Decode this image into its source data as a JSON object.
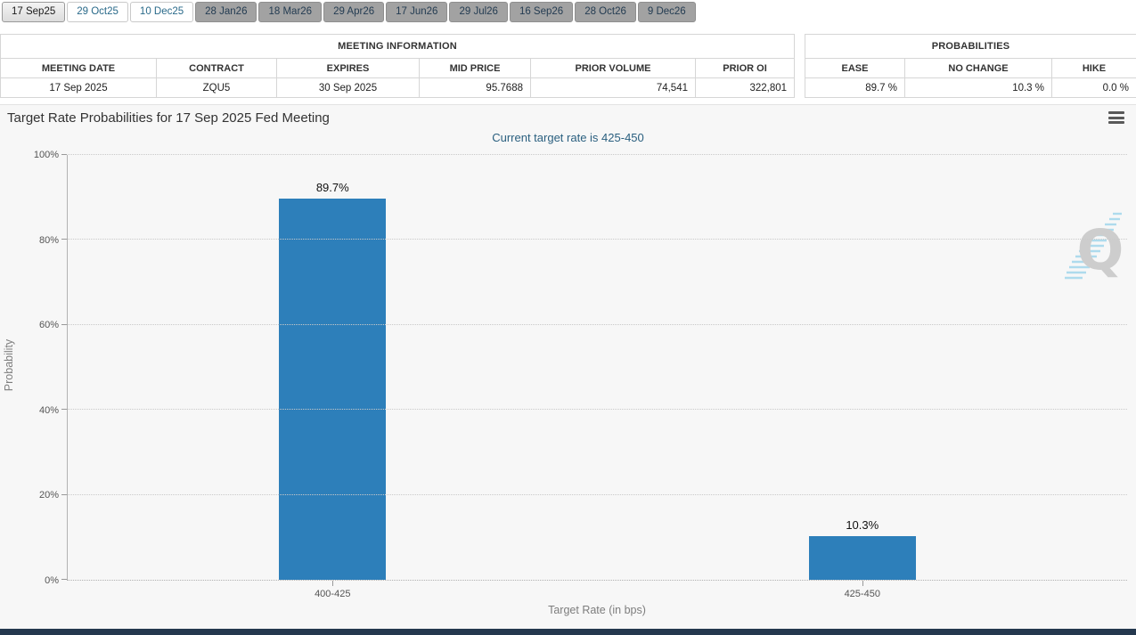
{
  "tabs": {
    "items": [
      {
        "label": "17 Sep25",
        "state": "selected"
      },
      {
        "label": "29 Oct25",
        "state": "normal"
      },
      {
        "label": "10 Dec25",
        "state": "normal"
      },
      {
        "label": "28 Jan26",
        "state": "dimmed"
      },
      {
        "label": "18 Mar26",
        "state": "dimmed"
      },
      {
        "label": "29 Apr26",
        "state": "dimmed"
      },
      {
        "label": "17 Jun26",
        "state": "dimmed"
      },
      {
        "label": "29 Jul26",
        "state": "dimmed"
      },
      {
        "label": "16 Sep26",
        "state": "dimmed"
      },
      {
        "label": "28 Oct26",
        "state": "dimmed"
      },
      {
        "label": "9 Dec26",
        "state": "dimmed"
      }
    ]
  },
  "meeting_information": {
    "title": "MEETING INFORMATION",
    "columns": [
      "MEETING DATE",
      "CONTRACT",
      "EXPIRES",
      "MID PRICE",
      "PRIOR VOLUME",
      "PRIOR OI"
    ],
    "row": {
      "meeting_date": "17 Sep 2025",
      "contract": "ZQU5",
      "expires": "30 Sep 2025",
      "mid_price": "95.7688",
      "prior_volume": "74,541",
      "prior_oi": "322,801"
    }
  },
  "probabilities": {
    "title": "PROBABILITIES",
    "columns": [
      "EASE",
      "NO CHANGE",
      "HIKE"
    ],
    "row": {
      "ease": "89.7 %",
      "no_change": "10.3 %",
      "hike": "0.0 %"
    }
  },
  "chart": {
    "title": "Target Rate Probabilities for 17 Sep 2025 Fed Meeting",
    "subtitle": "Current target rate is 425-450",
    "menu_icon": "hamburger-menu",
    "watermark_letter": "Q"
  },
  "chart_data": {
    "type": "bar",
    "title": "Target Rate Probabilities for 17 Sep 2025 Fed Meeting",
    "subtitle": "Current target rate is 425-450",
    "categories": [
      "400-425",
      "425-450"
    ],
    "values": [
      89.7,
      10.3
    ],
    "value_labels": [
      "89.7%",
      "10.3%"
    ],
    "xlabel": "Target Rate (in bps)",
    "ylabel": "Probability",
    "ylim": [
      0,
      100
    ],
    "yticks": [
      0,
      20,
      40,
      60,
      80,
      100
    ],
    "ytick_labels": [
      "0%",
      "20%",
      "40%",
      "60%",
      "80%",
      "100%"
    ],
    "bar_color": "#2d7fba",
    "grid": "horizontal-dotted",
    "legend": false
  },
  "colors": {
    "bar": "#2d7fba",
    "subtitle_text": "#2a5f7f",
    "panel_background": "#f7f7f7",
    "footer_bar": "#24384e",
    "tab_dimmed_background": "#a2a2a2"
  }
}
